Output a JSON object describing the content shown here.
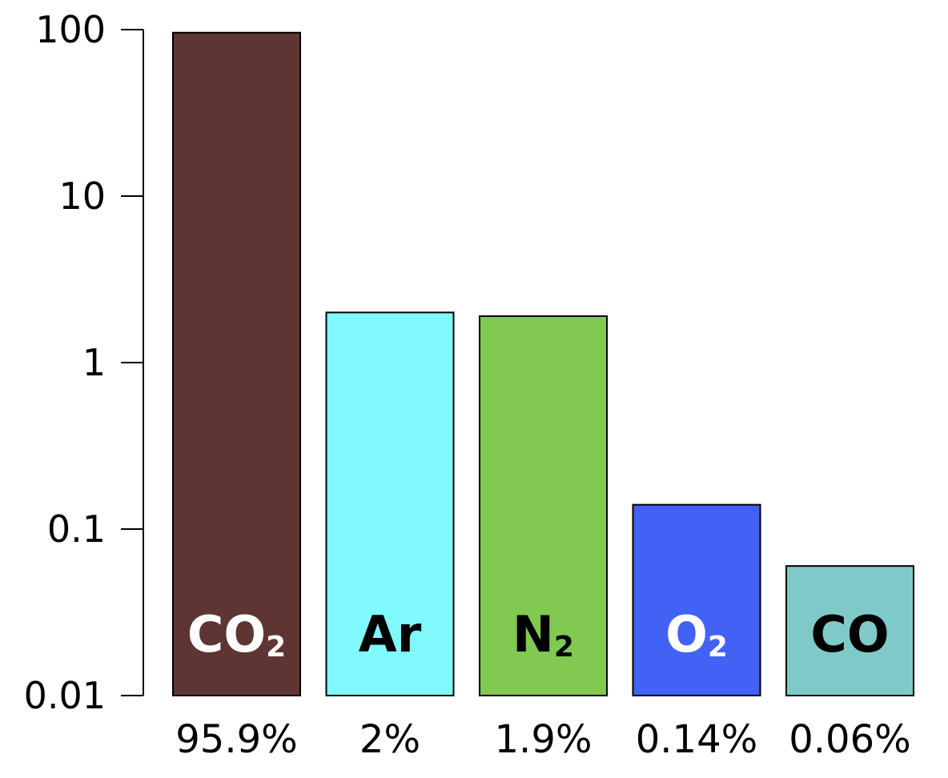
{
  "chart_data": {
    "type": "bar",
    "yscale": "log",
    "ylim": [
      0.01,
      100
    ],
    "yticks": [
      100,
      10,
      1,
      0.1,
      0.01
    ],
    "ytick_labels": [
      "100",
      "10",
      "1",
      "0.1",
      "0.01"
    ],
    "grid": false,
    "categories": [
      {
        "formula": "CO",
        "subscript": "2",
        "value": 95.9,
        "percent_label": "95.9%",
        "color": "#5e3533",
        "label_color": "#ffffff"
      },
      {
        "formula": "Ar",
        "subscript": "",
        "value": 2,
        "percent_label": "2%",
        "color": "#80f9fc",
        "label_color": "#000000"
      },
      {
        "formula": "N",
        "subscript": "2",
        "value": 1.9,
        "percent_label": "1.9%",
        "color": "#81c951",
        "label_color": "#000000"
      },
      {
        "formula": "O",
        "subscript": "2",
        "value": 0.14,
        "percent_label": "0.14%",
        "color": "#4162f5",
        "label_color": "#ffffff"
      },
      {
        "formula": "CO",
        "subscript": "",
        "value": 0.06,
        "percent_label": "0.06%",
        "color": "#80c9c9",
        "label_color": "#000000"
      }
    ]
  }
}
